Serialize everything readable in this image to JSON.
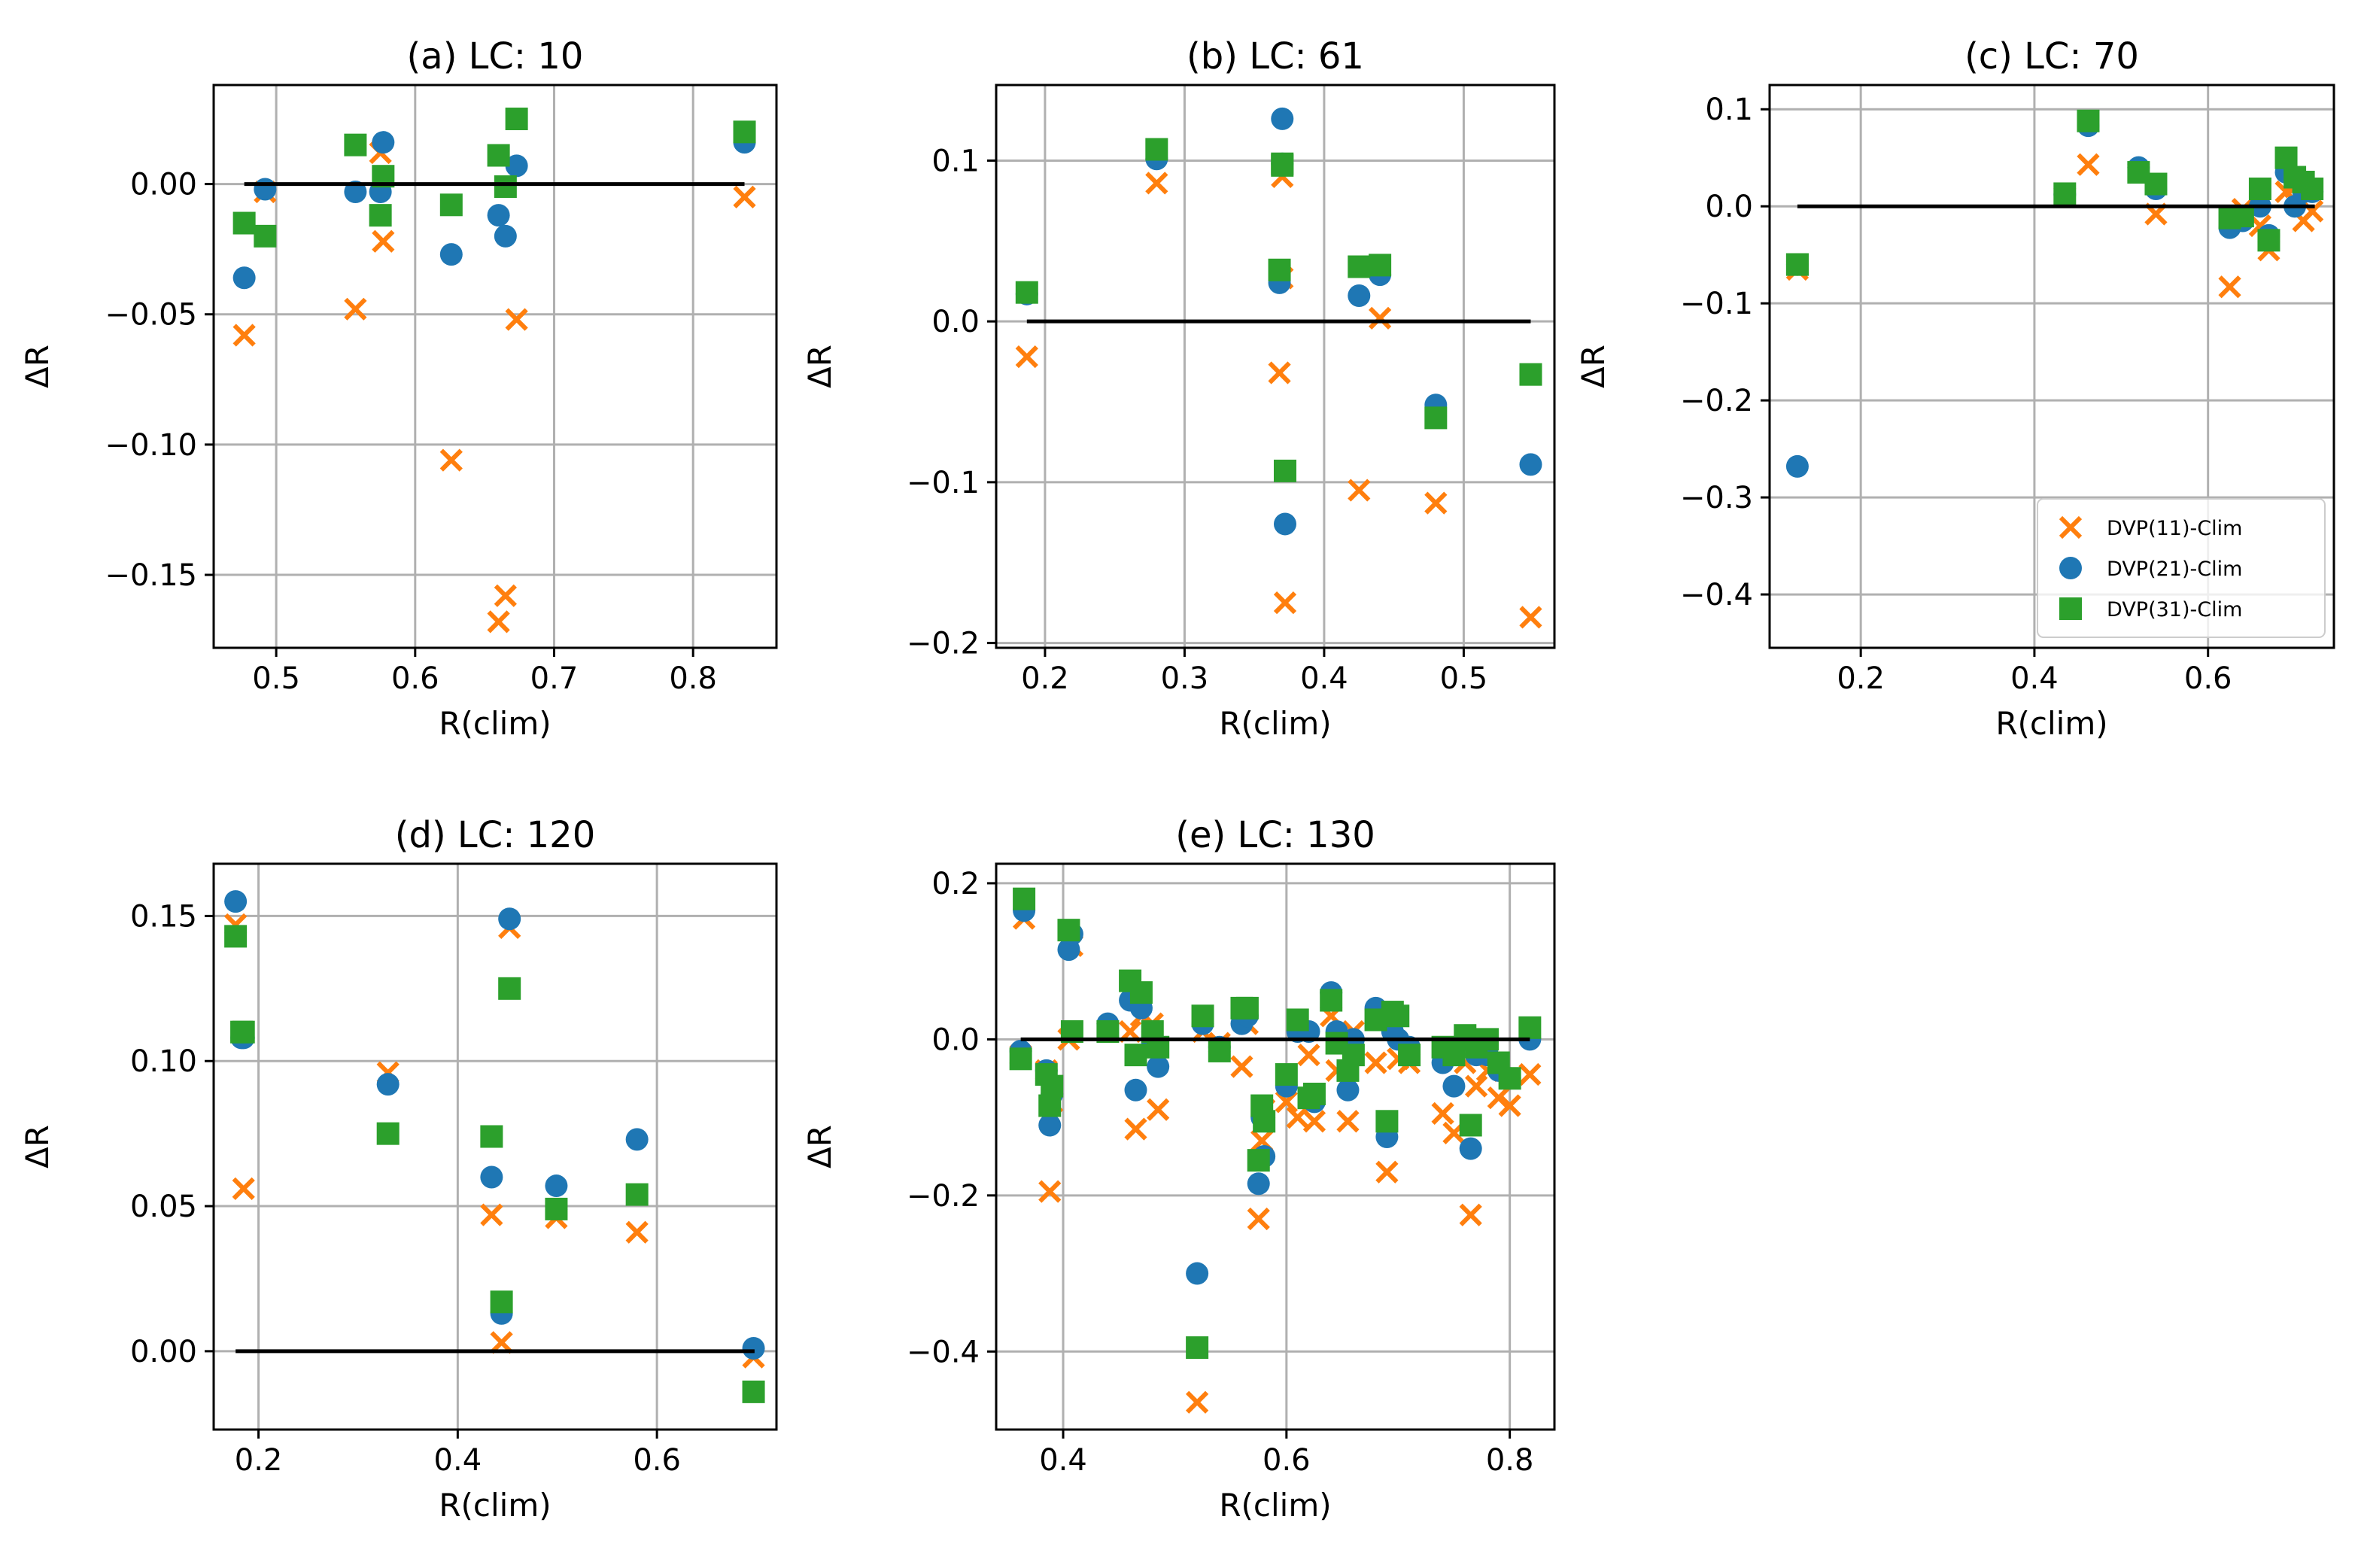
{
  "colors": {
    "series_1": "#ff7f0e",
    "series_2": "#1f77b4",
    "series_3": "#2ca02c",
    "zero_line": "#000000",
    "grid": "#b0b0b0"
  },
  "legend": [
    {
      "label": "DVP(11)-Clim",
      "marker": "x",
      "color": "#ff7f0e"
    },
    {
      "label": "DVP(21)-Clim",
      "marker": "circle",
      "color": "#1f77b4"
    },
    {
      "label": "DVP(31)-Clim",
      "marker": "square",
      "color": "#2ca02c"
    }
  ],
  "chart_data": [
    {
      "type": "scatter",
      "title": "(a) LC: 10",
      "xlabel": "R(clim)",
      "ylabel": "ΔR",
      "xlim": [
        0.455,
        0.86
      ],
      "ylim": [
        -0.178,
        0.038
      ],
      "xticks": [
        0.5,
        0.6,
        0.7,
        0.8
      ],
      "xtick_labels": [
        "0.5",
        "0.6",
        "0.7",
        "0.8"
      ],
      "yticks": [
        -0.15,
        -0.1,
        -0.05,
        0.0
      ],
      "ytick_labels": [
        "−0.15",
        "−0.10",
        "−0.05",
        "0.00"
      ],
      "zero_line": [
        0.477,
        0.837
      ],
      "legend": false,
      "series": [
        {
          "name": "DVP(11)-Clim",
          "x": [
            0.477,
            0.492,
            0.557,
            0.575,
            0.577,
            0.626,
            0.66,
            0.665,
            0.673,
            0.837
          ],
          "y": [
            -0.058,
            -0.003,
            -0.048,
            0.012,
            -0.022,
            -0.106,
            -0.168,
            -0.158,
            -0.052,
            -0.005
          ]
        },
        {
          "name": "DVP(21)-Clim",
          "x": [
            0.477,
            0.492,
            0.557,
            0.575,
            0.577,
            0.626,
            0.66,
            0.665,
            0.673,
            0.837
          ],
          "y": [
            -0.036,
            -0.002,
            -0.003,
            -0.003,
            0.016,
            -0.027,
            -0.012,
            -0.02,
            0.007,
            0.016
          ]
        },
        {
          "name": "DVP(31)-Clim",
          "x": [
            0.477,
            0.492,
            0.557,
            0.575,
            0.577,
            0.626,
            0.66,
            0.665,
            0.673,
            0.837
          ],
          "y": [
            -0.015,
            -0.02,
            0.015,
            -0.012,
            0.003,
            -0.008,
            0.011,
            -0.001,
            0.025,
            0.02
          ]
        }
      ]
    },
    {
      "type": "scatter",
      "title": "(b) LC: 61",
      "xlabel": "R(clim)",
      "ylabel": "ΔR",
      "xlim": [
        0.165,
        0.565
      ],
      "ylim": [
        -0.203,
        0.147
      ],
      "xticks": [
        0.2,
        0.3,
        0.4,
        0.5
      ],
      "xtick_labels": [
        "0.2",
        "0.3",
        "0.4",
        "0.5"
      ],
      "yticks": [
        -0.2,
        -0.1,
        0.0,
        0.1
      ],
      "ytick_labels": [
        "−0.2",
        "−0.1",
        "0.0",
        "0.1"
      ],
      "zero_line": [
        0.187,
        0.548
      ],
      "legend": false,
      "series": [
        {
          "name": "DVP(11)-Clim",
          "x": [
            0.187,
            0.28,
            0.368,
            0.37,
            0.37,
            0.372,
            0.425,
            0.44,
            0.48,
            0.548
          ],
          "y": [
            -0.022,
            0.086,
            -0.032,
            0.09,
            0.027,
            -0.175,
            -0.105,
            0.002,
            -0.113,
            -0.184
          ]
        },
        {
          "name": "DVP(21)-Clim",
          "x": [
            0.187,
            0.28,
            0.368,
            0.37,
            0.37,
            0.372,
            0.425,
            0.44,
            0.48,
            0.548
          ],
          "y": [
            0.017,
            0.101,
            0.024,
            0.126,
            0.098,
            -0.126,
            0.016,
            0.029,
            -0.052,
            -0.089
          ]
        },
        {
          "name": "DVP(31)-Clim",
          "x": [
            0.187,
            0.28,
            0.368,
            0.37,
            0.37,
            0.372,
            0.425,
            0.44,
            0.48,
            0.548
          ],
          "y": [
            0.018,
            0.107,
            0.032,
            0.098,
            0.097,
            -0.093,
            0.034,
            0.035,
            -0.06,
            -0.033
          ]
        }
      ]
    },
    {
      "type": "scatter",
      "title": "(c) LC: 70",
      "xlabel": "R(clim)",
      "ylabel": "ΔR",
      "xlim": [
        0.095,
        0.745
      ],
      "ylim": [
        -0.455,
        0.125
      ],
      "xticks": [
        0.2,
        0.4,
        0.6
      ],
      "xtick_labels": [
        "0.2",
        "0.4",
        "0.6"
      ],
      "yticks": [
        -0.4,
        -0.3,
        -0.2,
        -0.1,
        0.0,
        0.1
      ],
      "ytick_labels": [
        "−0.4",
        "−0.3",
        "−0.2",
        "−0.1",
        "0.0",
        "0.1"
      ],
      "zero_line": [
        0.127,
        0.723
      ],
      "legend": true,
      "legend_position": "lower right",
      "series": [
        {
          "name": "DVP(11)-Clim",
          "x": [
            0.127,
            0.127,
            0.435,
            0.462,
            0.52,
            0.54,
            0.625,
            0.64,
            0.66,
            0.67,
            0.69,
            0.7,
            0.71,
            0.72
          ],
          "y": [
            -0.065,
            -0.06,
            0.01,
            0.043,
            0.035,
            -0.008,
            -0.083,
            -0.003,
            -0.02,
            -0.045,
            0.015,
            0.02,
            -0.015,
            -0.005
          ]
        },
        {
          "name": "DVP(21)-Clim",
          "x": [
            0.127,
            0.127,
            0.435,
            0.462,
            0.52,
            0.54,
            0.625,
            0.64,
            0.66,
            0.67,
            0.69,
            0.7,
            0.71,
            0.72
          ],
          "y": [
            -0.268,
            -0.06,
            0.012,
            0.083,
            0.04,
            0.018,
            -0.022,
            -0.015,
            0.0,
            -0.03,
            0.035,
            0.0,
            0.015,
            0.015
          ]
        },
        {
          "name": "DVP(31)-Clim",
          "x": [
            0.127,
            0.127,
            0.435,
            0.462,
            0.52,
            0.54,
            0.625,
            0.64,
            0.66,
            0.67,
            0.69,
            0.7,
            0.71,
            0.72
          ],
          "y": [
            -0.06,
            -0.06,
            0.013,
            0.088,
            0.035,
            0.023,
            -0.012,
            -0.01,
            0.018,
            -0.035,
            0.05,
            0.03,
            0.025,
            0.018
          ]
        }
      ]
    },
    {
      "type": "scatter",
      "title": "(d) LC: 120",
      "xlabel": "R(clim)",
      "ylabel": "ΔR",
      "xlim": [
        0.155,
        0.72
      ],
      "ylim": [
        -0.027,
        0.168
      ],
      "xticks": [
        0.2,
        0.4,
        0.6
      ],
      "xtick_labels": [
        "0.2",
        "0.4",
        "0.6"
      ],
      "yticks": [
        0.0,
        0.05,
        0.1,
        0.15
      ],
      "ytick_labels": [
        "0.00",
        "0.05",
        "0.10",
        "0.15"
      ],
      "zero_line": [
        0.177,
        0.698
      ],
      "legend": false,
      "series": [
        {
          "name": "DVP(11)-Clim",
          "x": [
            0.177,
            0.183,
            0.185,
            0.33,
            0.434,
            0.444,
            0.452,
            0.499,
            0.58,
            0.697
          ],
          "y": [
            0.147,
            0.11,
            0.056,
            0.096,
            0.047,
            0.003,
            0.146,
            0.046,
            0.041,
            -0.002
          ]
        },
        {
          "name": "DVP(21)-Clim",
          "x": [
            0.177,
            0.183,
            0.185,
            0.33,
            0.434,
            0.444,
            0.452,
            0.499,
            0.58,
            0.697
          ],
          "y": [
            0.155,
            0.108,
            0.108,
            0.092,
            0.06,
            0.013,
            0.149,
            0.057,
            0.073,
            0.001
          ]
        },
        {
          "name": "DVP(31)-Clim",
          "x": [
            0.177,
            0.183,
            0.185,
            0.33,
            0.434,
            0.444,
            0.452,
            0.499,
            0.58,
            0.697
          ],
          "y": [
            0.143,
            0.11,
            0.11,
            0.075,
            0.074,
            0.017,
            0.125,
            0.049,
            0.054,
            -0.014
          ]
        }
      ]
    },
    {
      "type": "scatter",
      "title": "(e) LC: 130",
      "xlabel": "R(clim)",
      "ylabel": "ΔR",
      "xlim": [
        0.34,
        0.84
      ],
      "ylim": [
        -0.5,
        0.225
      ],
      "xticks": [
        0.4,
        0.6,
        0.8
      ],
      "xtick_labels": [
        "0.4",
        "0.6",
        "0.8"
      ],
      "yticks": [
        -0.4,
        -0.2,
        0.0,
        0.2
      ],
      "ytick_labels": [
        "−0.4",
        "−0.2",
        "0.0",
        "0.2"
      ],
      "zero_line": [
        0.362,
        0.818
      ],
      "legend": false,
      "series": [
        {
          "name": "DVP(11)-Clim",
          "x": [
            0.362,
            0.365,
            0.385,
            0.388,
            0.39,
            0.405,
            0.408,
            0.44,
            0.46,
            0.465,
            0.47,
            0.48,
            0.485,
            0.52,
            0.525,
            0.54,
            0.56,
            0.565,
            0.575,
            0.578,
            0.58,
            0.6,
            0.61,
            0.62,
            0.625,
            0.64,
            0.645,
            0.655,
            0.66,
            0.68,
            0.69,
            0.695,
            0.7,
            0.71,
            0.74,
            0.75,
            0.76,
            0.765,
            0.77,
            0.78,
            0.79,
            0.8,
            0.818
          ],
          "y": [
            -0.02,
            0.155,
            -0.04,
            -0.195,
            -0.08,
            0.0,
            0.12,
            0.01,
            0.01,
            -0.115,
            0.03,
            0.02,
            -0.09,
            -0.465,
            0.01,
            -0.005,
            -0.035,
            0.02,
            -0.23,
            -0.13,
            -0.09,
            -0.08,
            -0.1,
            -0.02,
            -0.105,
            0.03,
            -0.04,
            -0.105,
            0.01,
            -0.03,
            -0.17,
            0.02,
            -0.025,
            -0.03,
            -0.095,
            -0.12,
            -0.03,
            -0.225,
            -0.06,
            -0.04,
            -0.075,
            -0.085,
            -0.045
          ]
        },
        {
          "name": "DVP(21)-Clim",
          "x": [
            0.362,
            0.365,
            0.385,
            0.388,
            0.39,
            0.405,
            0.408,
            0.44,
            0.46,
            0.465,
            0.47,
            0.48,
            0.485,
            0.52,
            0.525,
            0.54,
            0.56,
            0.565,
            0.575,
            0.578,
            0.58,
            0.6,
            0.61,
            0.62,
            0.625,
            0.64,
            0.645,
            0.655,
            0.66,
            0.68,
            0.69,
            0.695,
            0.7,
            0.71,
            0.74,
            0.75,
            0.76,
            0.765,
            0.77,
            0.78,
            0.79,
            0.8,
            0.818
          ],
          "y": [
            -0.015,
            0.165,
            -0.04,
            -0.11,
            -0.07,
            0.115,
            0.135,
            0.02,
            0.05,
            -0.065,
            0.04,
            -0.005,
            -0.035,
            -0.3,
            0.02,
            -0.01,
            0.02,
            0.03,
            -0.185,
            -0.1,
            -0.15,
            -0.06,
            0.01,
            0.01,
            -0.08,
            0.06,
            0.01,
            -0.065,
            0.0,
            0.04,
            -0.125,
            0.01,
            0.0,
            -0.01,
            -0.03,
            -0.06,
            0.0,
            -0.14,
            -0.02,
            -0.02,
            -0.04,
            -0.05,
            0.0
          ]
        },
        {
          "name": "DVP(31)-Clim",
          "x": [
            0.362,
            0.365,
            0.385,
            0.388,
            0.39,
            0.405,
            0.408,
            0.44,
            0.46,
            0.465,
            0.47,
            0.48,
            0.485,
            0.52,
            0.525,
            0.54,
            0.56,
            0.565,
            0.575,
            0.578,
            0.58,
            0.6,
            0.61,
            0.62,
            0.625,
            0.64,
            0.645,
            0.655,
            0.66,
            0.68,
            0.69,
            0.695,
            0.7,
            0.71,
            0.74,
            0.75,
            0.76,
            0.765,
            0.77,
            0.78,
            0.79,
            0.8,
            0.818
          ],
          "y": [
            -0.025,
            0.18,
            -0.045,
            -0.085,
            -0.06,
            0.14,
            0.01,
            0.01,
            0.075,
            -0.02,
            0.06,
            0.01,
            -0.01,
            -0.395,
            0.03,
            -0.015,
            0.04,
            0.04,
            -0.155,
            -0.085,
            -0.105,
            -0.045,
            0.025,
            -0.075,
            -0.07,
            0.05,
            -0.005,
            -0.04,
            -0.02,
            0.025,
            -0.105,
            0.035,
            0.03,
            -0.02,
            -0.01,
            -0.02,
            0.005,
            -0.11,
            -0.01,
            0.0,
            -0.03,
            -0.05,
            0.015
          ]
        }
      ]
    }
  ]
}
